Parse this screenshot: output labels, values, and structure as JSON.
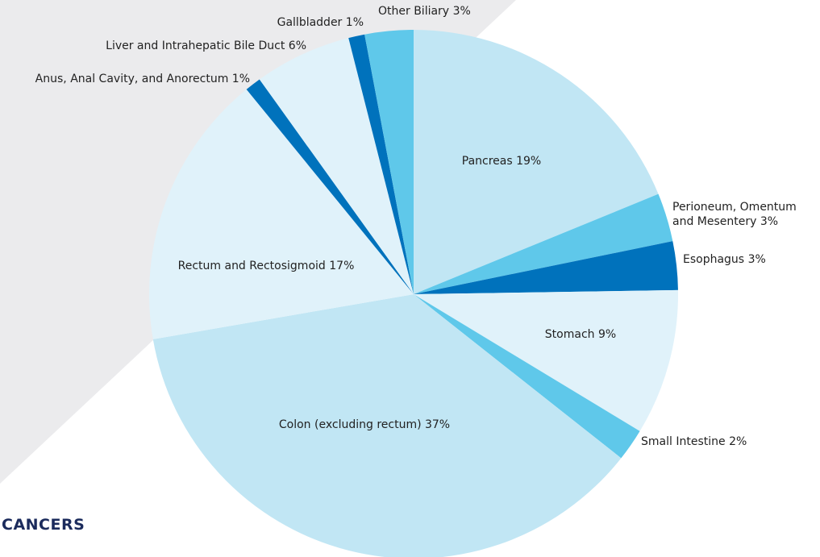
{
  "chart_data": {
    "type": "pie",
    "caption": "CANCERS",
    "categories": [
      "Pancreas",
      "Perioneum, Omentum and Mesentery",
      "Esophagus",
      "Stomach",
      "Small Intestine",
      "Colon (excluding rectum)",
      "Rectum and Rectosigmoid",
      "Anus, Anal Cavity, and Anorectum",
      "Liver and Intrahepatic Bile Duct",
      "Gallbladder",
      "Other Biliary"
    ],
    "values": [
      19,
      3,
      3,
      9,
      2,
      37,
      17,
      1,
      6,
      1,
      3
    ],
    "value_labels": [
      "19%",
      "3%",
      "3%",
      "9%",
      "2%",
      "37%",
      "17%",
      "1%",
      "6%",
      "1%",
      "3%"
    ],
    "colors": [
      "#c1e6f4",
      "#5fc8ea",
      "#0072bc",
      "#e0f2fa",
      "#5fc8ea",
      "#c1e6f4",
      "#e0f2fa",
      "#0072bc",
      "#e0f2fa",
      "#0072bc",
      "#5fc8ea"
    ]
  }
}
